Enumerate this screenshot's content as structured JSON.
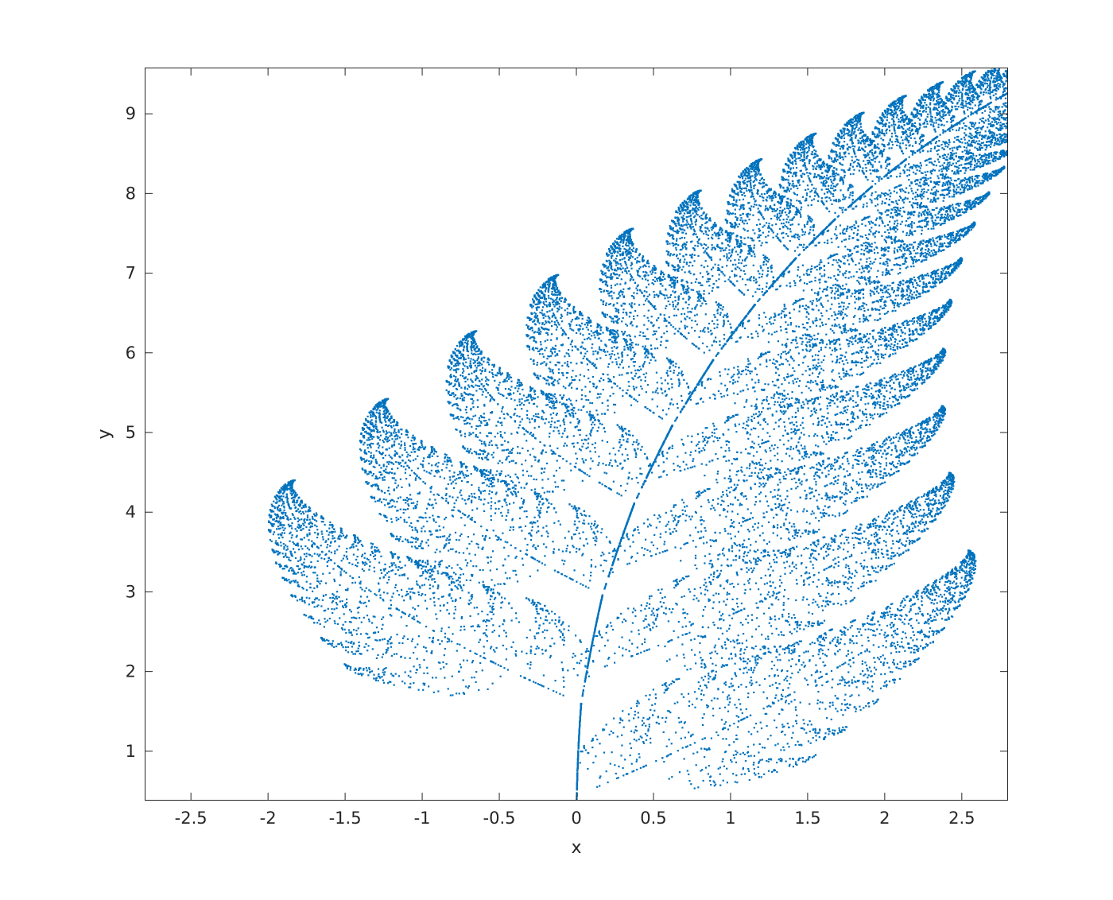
{
  "chart_data": {
    "type": "scatter",
    "title": "",
    "xlabel": "x",
    "ylabel": "y",
    "xlim": [
      -2.8,
      2.8
    ],
    "ylim": [
      0.38,
      9.58
    ],
    "xticks": [
      -2.5,
      -2,
      -1.5,
      -1,
      -0.5,
      0,
      0.5,
      1,
      1.5,
      2,
      2.5
    ],
    "xtick_labels": [
      "-2.5",
      "-2",
      "-1.5",
      "-1",
      "-0.5",
      "0",
      "0.5",
      "1",
      "1.5",
      "2",
      "2.5"
    ],
    "yticks": [
      1,
      2,
      3,
      4,
      5,
      6,
      7,
      8,
      9
    ],
    "ytick_labels": [
      "1",
      "2",
      "3",
      "4",
      "5",
      "6",
      "7",
      "8",
      "9"
    ],
    "grid": false,
    "legend": null,
    "series": [
      {
        "marker_color": "#0072BD",
        "description_points": "Barnsley fern attractor: stem from (0,0.38) curving to (2.3,9.58); leaflets alternate left/right",
        "points_sample": [
          [
            0.0,
            0.5
          ],
          [
            0.0,
            1.0
          ],
          [
            0.02,
            1.5
          ],
          [
            0.05,
            2.0
          ],
          [
            0.1,
            2.5
          ],
          [
            0.15,
            3.0
          ],
          [
            0.2,
            3.5
          ],
          [
            0.26,
            4.0
          ],
          [
            0.32,
            4.5
          ],
          [
            0.38,
            5.0
          ],
          [
            0.46,
            5.5
          ],
          [
            0.54,
            6.0
          ],
          [
            0.64,
            6.5
          ],
          [
            0.75,
            7.0
          ],
          [
            0.88,
            7.5
          ],
          [
            1.02,
            8.0
          ],
          [
            1.18,
            8.5
          ],
          [
            1.35,
            9.0
          ],
          [
            2.11,
            2.9
          ],
          [
            -1.7,
            4.0
          ],
          [
            -1.28,
            5.2
          ],
          [
            -0.92,
            6.0
          ],
          [
            -0.55,
            6.8
          ],
          [
            -0.18,
            7.3
          ],
          [
            2.4,
            3.5
          ],
          [
            2.2,
            4.5
          ],
          [
            2.05,
            5.3
          ],
          [
            1.95,
            6.0
          ],
          [
            1.9,
            6.6
          ],
          [
            1.88,
            7.2
          ]
        ]
      }
    ]
  },
  "style": {
    "point_color": "#0072BD",
    "axis_color": "#262626",
    "background": "#ffffff"
  }
}
